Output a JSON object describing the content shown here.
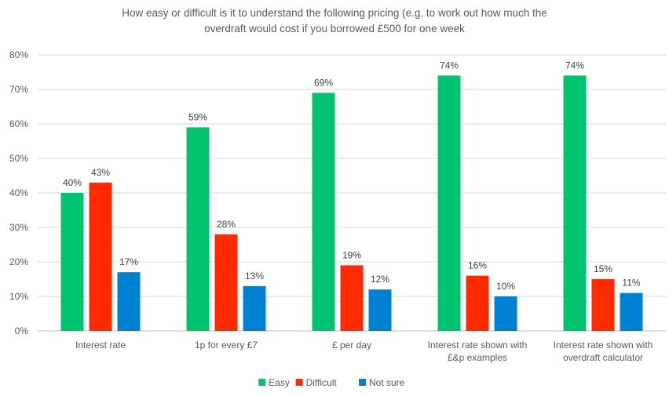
{
  "chart_data": {
    "type": "bar",
    "title": "How easy or difficult is it to understand the following pricing (e.g. to work out how much the overdraft would cost if you borrowed £500 for one week",
    "title_lines": [
      "How easy or difficult is it to understand the following pricing (e.g. to work out how much the",
      "overdraft would cost if you borrowed £500 for one week"
    ],
    "categories": [
      "Interest rate",
      "1p for every £7",
      "£ per day",
      "Interest rate shown with £&p examples",
      "Interest rate shown with overdraft calculator"
    ],
    "category_lines": [
      [
        "Interest rate"
      ],
      [
        "1p for every £7"
      ],
      [
        "£ per day"
      ],
      [
        "Interest rate shown with",
        "£&p examples"
      ],
      [
        "Interest rate shown with",
        "overdraft calculator"
      ]
    ],
    "series": [
      {
        "name": "Easy",
        "color": "#00c26f",
        "values": [
          40,
          59,
          69,
          74,
          74
        ]
      },
      {
        "name": "Difficult",
        "color": "#ff2a00",
        "values": [
          43,
          28,
          19,
          16,
          15
        ]
      },
      {
        "name": "Not sure",
        "color": "#0080d0",
        "values": [
          17,
          13,
          12,
          10,
          11
        ]
      }
    ],
    "ylim": [
      0,
      80
    ],
    "yticks": [
      0,
      10,
      20,
      30,
      40,
      50,
      60,
      70,
      80
    ],
    "tick_format": "percent",
    "grid": true,
    "legend_position": "bottom",
    "xlabel": "",
    "ylabel": ""
  }
}
